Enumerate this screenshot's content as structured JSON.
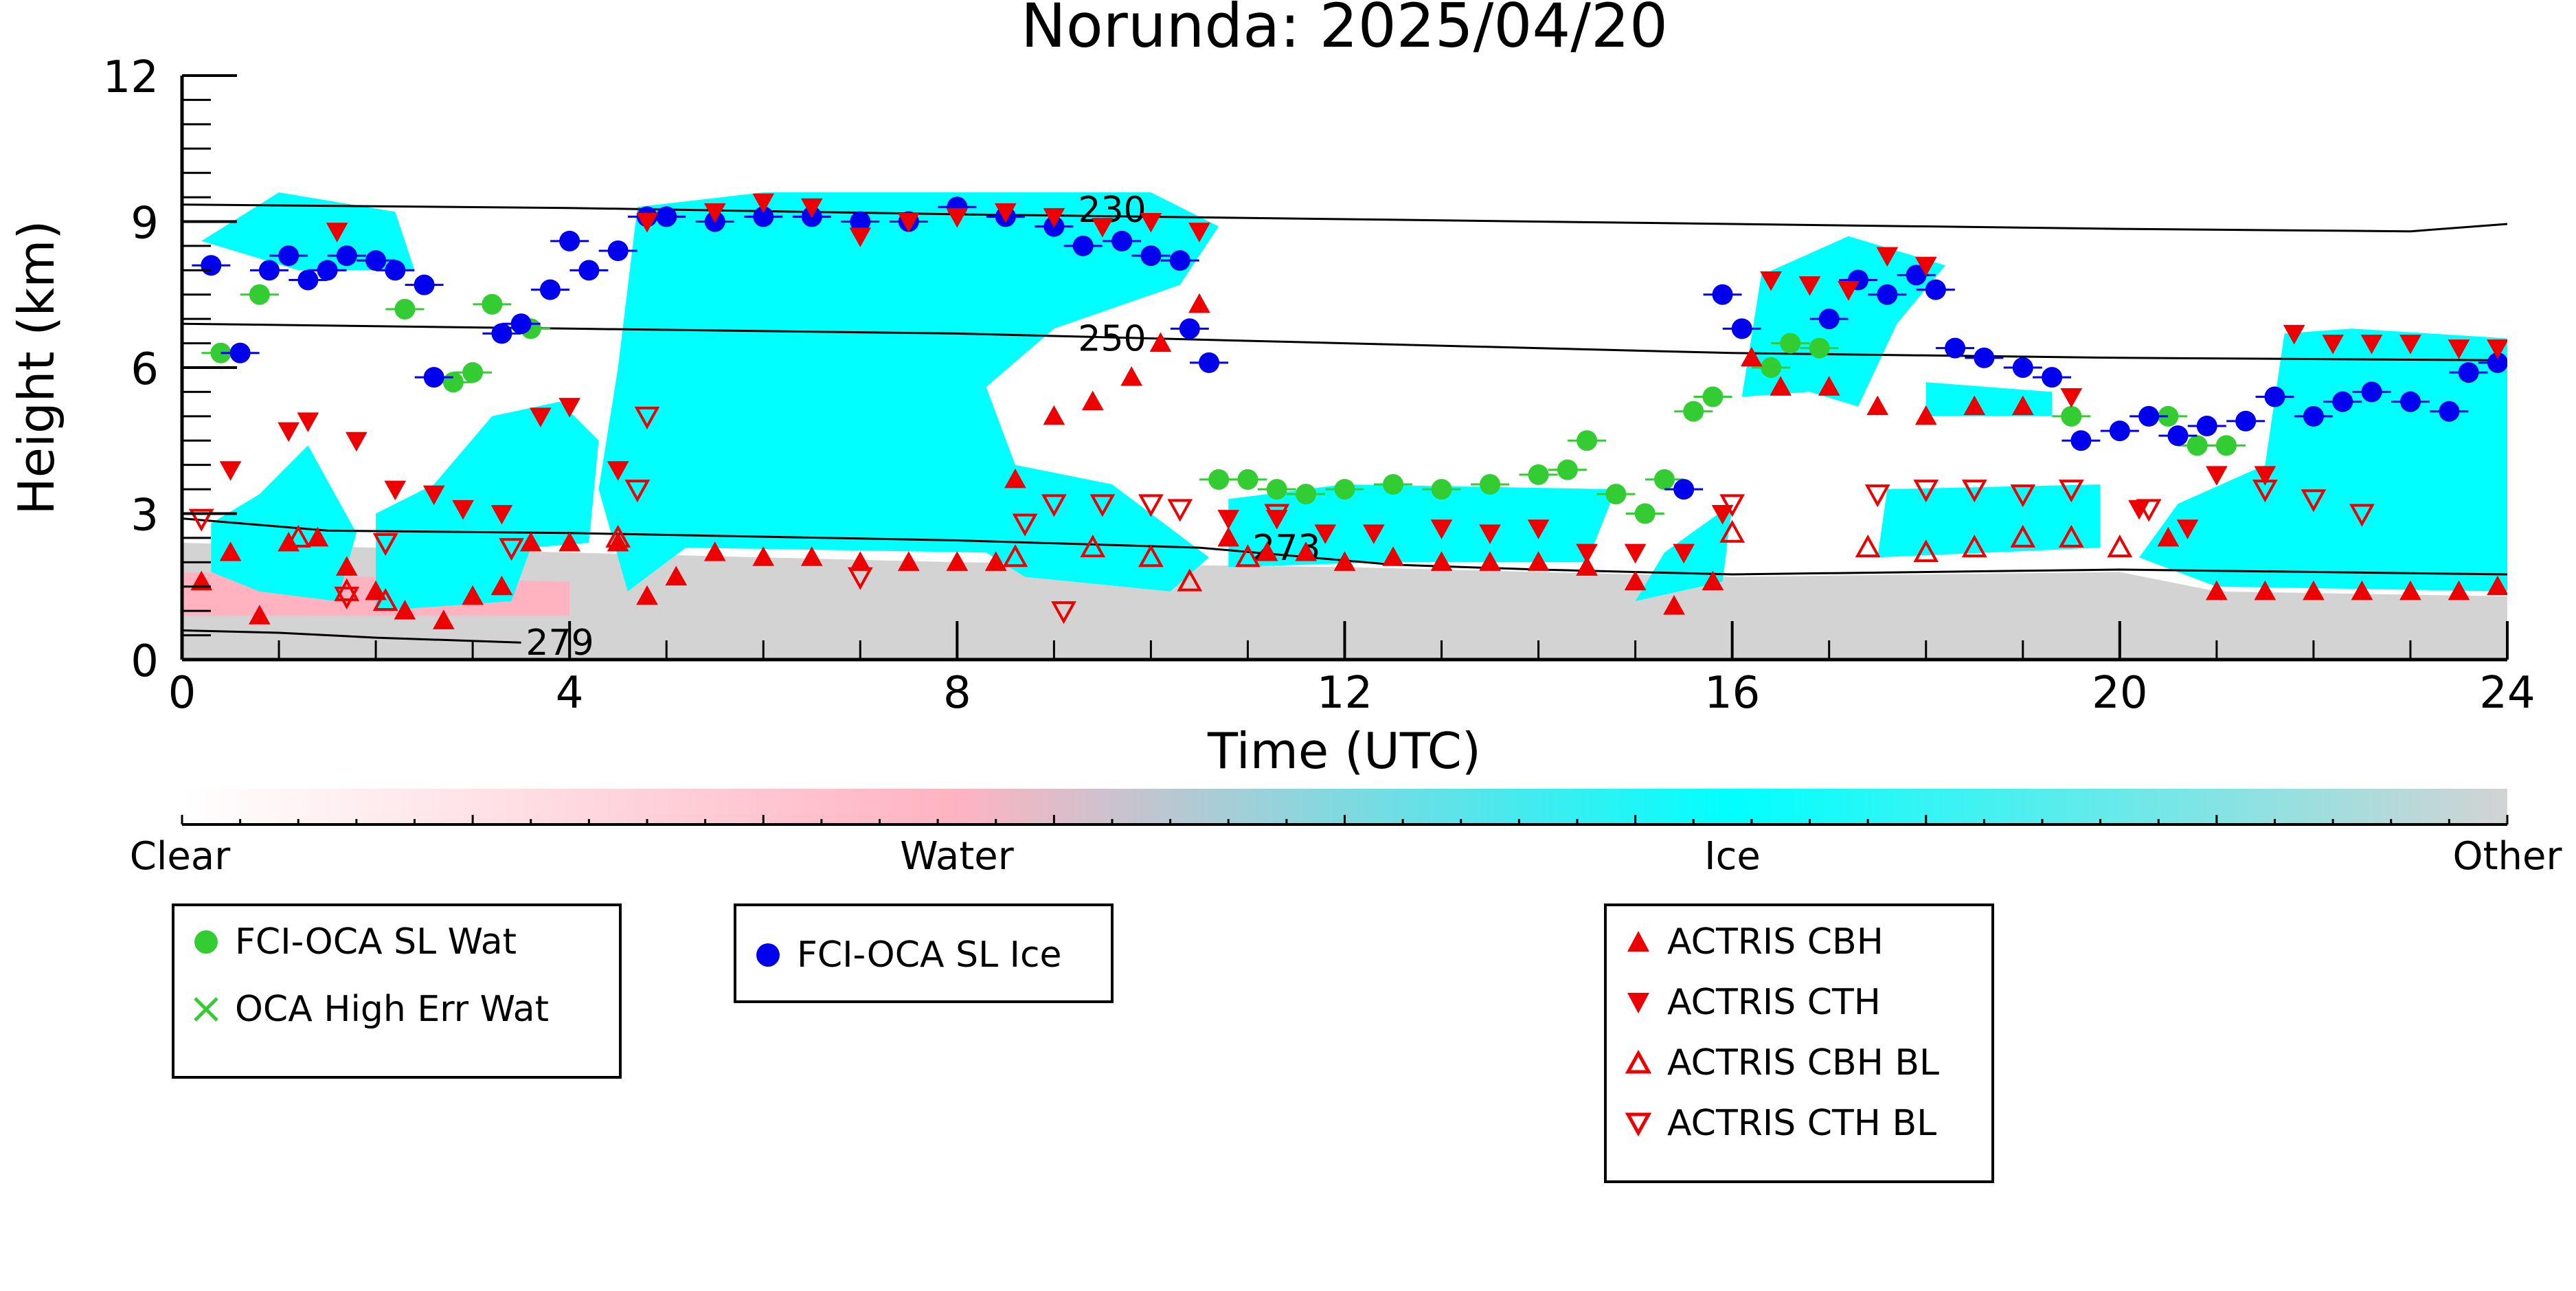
{
  "chart_data": {
    "type": "scatter",
    "title": "Norunda: 2025/04/20",
    "xlabel": "Time (UTC)",
    "ylabel": "Height (km)",
    "xlim": [
      0,
      24
    ],
    "ylim": [
      0,
      12
    ],
    "x_ticks": [
      "0",
      "4",
      "8",
      "12",
      "16",
      "20",
      "24"
    ],
    "y_ticks": [
      "0",
      "3",
      "6",
      "9",
      "12"
    ],
    "grid": false,
    "colorbar": {
      "labels": [
        "Clear",
        "Water",
        "Ice",
        "Other"
      ],
      "colors": [
        "#ffffff",
        "#ffb3c1",
        "#00ffff",
        "#d3d3d3"
      ]
    },
    "contours": [
      {
        "label": "230",
        "label_x": 9.6,
        "label_y": 9.25,
        "x": [
          0,
          4,
          8,
          12,
          16,
          20,
          23,
          24
        ],
        "y": [
          9.35,
          9.28,
          9.15,
          9.05,
          8.95,
          8.85,
          8.8,
          8.95
        ]
      },
      {
        "label": "250",
        "label_x": 9.6,
        "label_y": 6.6,
        "x": [
          0,
          4,
          8,
          12,
          16,
          20,
          24
        ],
        "y": [
          6.9,
          6.8,
          6.7,
          6.5,
          6.3,
          6.2,
          6.15
        ]
      },
      {
        "label": "273",
        "label_x": 11.4,
        "label_y": 2.3,
        "x": [
          0,
          1.5,
          4,
          8,
          10.5,
          12.5,
          14,
          16,
          20,
          24
        ],
        "y": [
          2.9,
          2.65,
          2.6,
          2.45,
          2.3,
          1.95,
          1.85,
          1.75,
          1.85,
          1.75
        ]
      },
      {
        "label": "279",
        "label_x": 3.9,
        "label_y": 0.35,
        "x": [
          0,
          1,
          2,
          3.5
        ],
        "y": [
          0.6,
          0.55,
          0.45,
          0.35
        ]
      }
    ],
    "series": [
      {
        "name": "FCI-OCA SL Wat",
        "marker": "circle",
        "color": "#33cc33",
        "points": [
          [
            0.4,
            6.3
          ],
          [
            0.8,
            7.5
          ],
          [
            2.3,
            7.2
          ],
          [
            2.8,
            5.7
          ],
          [
            3.0,
            5.9
          ],
          [
            3.2,
            7.3
          ],
          [
            3.6,
            6.8
          ],
          [
            10.7,
            3.7
          ],
          [
            11.0,
            3.7
          ],
          [
            11.3,
            3.5
          ],
          [
            11.6,
            3.4
          ],
          [
            12.0,
            3.5
          ],
          [
            12.5,
            3.6
          ],
          [
            13.0,
            3.5
          ],
          [
            13.5,
            3.6
          ],
          [
            14.0,
            3.8
          ],
          [
            14.3,
            3.9
          ],
          [
            14.5,
            4.5
          ],
          [
            14.8,
            3.4
          ],
          [
            15.1,
            3.0
          ],
          [
            15.3,
            3.7
          ],
          [
            15.6,
            5.1
          ],
          [
            15.8,
            5.4
          ],
          [
            16.4,
            6.0
          ],
          [
            16.6,
            6.5
          ],
          [
            16.9,
            6.4
          ],
          [
            19.5,
            5.0
          ],
          [
            20.5,
            5.0
          ],
          [
            20.8,
            4.4
          ],
          [
            21.1,
            4.4
          ]
        ]
      },
      {
        "name": "OCA High Err Wat",
        "marker": "x",
        "color": "#33cc33",
        "points": []
      },
      {
        "name": "FCI-OCA SL Ice",
        "marker": "circle",
        "color": "#0000ee",
        "points": [
          [
            0.3,
            8.1
          ],
          [
            0.6,
            6.3
          ],
          [
            0.9,
            8.0
          ],
          [
            1.1,
            8.3
          ],
          [
            1.3,
            7.8
          ],
          [
            1.5,
            8.0
          ],
          [
            1.7,
            8.3
          ],
          [
            2.0,
            8.2
          ],
          [
            2.2,
            8.0
          ],
          [
            2.5,
            7.7
          ],
          [
            2.6,
            5.8
          ],
          [
            3.3,
            6.7
          ],
          [
            3.5,
            6.9
          ],
          [
            3.8,
            7.6
          ],
          [
            4.0,
            8.6
          ],
          [
            4.2,
            8.0
          ],
          [
            4.5,
            8.4
          ],
          [
            4.8,
            9.1
          ],
          [
            5.0,
            9.1
          ],
          [
            5.5,
            9.0
          ],
          [
            6.0,
            9.1
          ],
          [
            6.5,
            9.1
          ],
          [
            7.0,
            9.0
          ],
          [
            7.5,
            9.0
          ],
          [
            8.0,
            9.3
          ],
          [
            8.5,
            9.1
          ],
          [
            9.0,
            8.9
          ],
          [
            9.3,
            8.5
          ],
          [
            9.7,
            8.6
          ],
          [
            10.0,
            8.3
          ],
          [
            10.3,
            8.2
          ],
          [
            10.4,
            6.8
          ],
          [
            10.6,
            6.1
          ],
          [
            15.5,
            3.5
          ],
          [
            15.9,
            7.5
          ],
          [
            16.1,
            6.8
          ],
          [
            17.0,
            7.0
          ],
          [
            17.3,
            7.8
          ],
          [
            17.6,
            7.5
          ],
          [
            17.9,
            7.9
          ],
          [
            18.1,
            7.6
          ],
          [
            18.3,
            6.4
          ],
          [
            18.6,
            6.2
          ],
          [
            19.0,
            6.0
          ],
          [
            19.3,
            5.8
          ],
          [
            19.6,
            4.5
          ],
          [
            20.0,
            4.7
          ],
          [
            20.3,
            5.0
          ],
          [
            20.6,
            4.6
          ],
          [
            20.9,
            4.8
          ],
          [
            21.3,
            4.9
          ],
          [
            21.6,
            5.4
          ],
          [
            22.0,
            5.0
          ],
          [
            22.3,
            5.3
          ],
          [
            22.6,
            5.5
          ],
          [
            23.0,
            5.3
          ],
          [
            23.4,
            5.1
          ],
          [
            23.6,
            5.9
          ],
          [
            23.9,
            6.1
          ]
        ]
      },
      {
        "name": "ACTRIS CBH",
        "marker": "triangle-up",
        "color": "#ee0000",
        "points": [
          [
            0.2,
            1.6
          ],
          [
            0.5,
            2.2
          ],
          [
            0.8,
            0.9
          ],
          [
            1.1,
            2.4
          ],
          [
            1.4,
            2.5
          ],
          [
            1.7,
            1.9
          ],
          [
            2.0,
            1.4
          ],
          [
            2.3,
            1.0
          ],
          [
            2.7,
            0.8
          ],
          [
            3.0,
            1.3
          ],
          [
            3.3,
            1.5
          ],
          [
            3.6,
            2.4
          ],
          [
            4.0,
            2.4
          ],
          [
            4.5,
            2.4
          ],
          [
            4.8,
            1.3
          ],
          [
            5.1,
            1.7
          ],
          [
            5.5,
            2.2
          ],
          [
            6.0,
            2.1
          ],
          [
            6.5,
            2.1
          ],
          [
            7.0,
            2.0
          ],
          [
            7.5,
            2.0
          ],
          [
            8.0,
            2.0
          ],
          [
            8.4,
            2.0
          ],
          [
            8.6,
            3.7
          ],
          [
            9.0,
            5.0
          ],
          [
            9.4,
            5.3
          ],
          [
            9.8,
            5.8
          ],
          [
            10.1,
            6.5
          ],
          [
            10.5,
            7.3
          ],
          [
            10.8,
            2.5
          ],
          [
            11.2,
            2.2
          ],
          [
            11.6,
            2.2
          ],
          [
            12.0,
            2.0
          ],
          [
            12.5,
            2.1
          ],
          [
            13.0,
            2.0
          ],
          [
            13.5,
            2.0
          ],
          [
            14.0,
            2.0
          ],
          [
            14.5,
            1.9
          ],
          [
            15.0,
            1.6
          ],
          [
            15.4,
            1.1
          ],
          [
            15.8,
            1.6
          ],
          [
            16.2,
            6.2
          ],
          [
            16.5,
            5.6
          ],
          [
            17.0,
            5.6
          ],
          [
            17.5,
            5.2
          ],
          [
            18.0,
            5.0
          ],
          [
            18.5,
            5.2
          ],
          [
            19.0,
            5.2
          ],
          [
            20.5,
            2.5
          ],
          [
            21.0,
            1.4
          ],
          [
            21.5,
            1.4
          ],
          [
            22.0,
            1.4
          ],
          [
            22.5,
            1.4
          ],
          [
            23.0,
            1.4
          ],
          [
            23.5,
            1.4
          ],
          [
            23.9,
            1.5
          ]
        ]
      },
      {
        "name": "ACTRIS CTH",
        "marker": "triangle-down",
        "color": "#ee0000",
        "points": [
          [
            0.5,
            3.9
          ],
          [
            1.1,
            4.7
          ],
          [
            1.3,
            4.9
          ],
          [
            1.6,
            8.8
          ],
          [
            1.8,
            4.5
          ],
          [
            2.2,
            3.5
          ],
          [
            2.6,
            3.4
          ],
          [
            2.9,
            3.1
          ],
          [
            3.3,
            3.0
          ],
          [
            3.7,
            5.0
          ],
          [
            4.0,
            5.2
          ],
          [
            4.5,
            3.9
          ],
          [
            4.8,
            9.0
          ],
          [
            5.5,
            9.2
          ],
          [
            6.0,
            9.4
          ],
          [
            6.5,
            9.3
          ],
          [
            7.0,
            8.7
          ],
          [
            7.5,
            9.0
          ],
          [
            8.0,
            9.1
          ],
          [
            8.5,
            9.2
          ],
          [
            9.0,
            9.1
          ],
          [
            9.5,
            8.9
          ],
          [
            10.0,
            9.0
          ],
          [
            10.5,
            8.8
          ],
          [
            10.8,
            2.9
          ],
          [
            11.3,
            2.9
          ],
          [
            11.8,
            2.6
          ],
          [
            12.3,
            2.6
          ],
          [
            13.0,
            2.7
          ],
          [
            13.5,
            2.6
          ],
          [
            14.0,
            2.7
          ],
          [
            14.5,
            2.2
          ],
          [
            15.0,
            2.2
          ],
          [
            15.5,
            2.2
          ],
          [
            15.9,
            3.0
          ],
          [
            16.4,
            7.8
          ],
          [
            16.8,
            7.7
          ],
          [
            17.2,
            7.6
          ],
          [
            17.6,
            8.3
          ],
          [
            18.0,
            8.1
          ],
          [
            19.5,
            5.4
          ],
          [
            20.2,
            3.1
          ],
          [
            20.7,
            2.7
          ],
          [
            21.0,
            3.8
          ],
          [
            21.5,
            3.8
          ],
          [
            21.8,
            6.7
          ],
          [
            22.2,
            6.5
          ],
          [
            22.6,
            6.5
          ],
          [
            23.0,
            6.5
          ],
          [
            23.5,
            6.4
          ],
          [
            23.9,
            6.4
          ]
        ]
      },
      {
        "name": "ACTRIS CBH BL",
        "marker": "triangle-up-open",
        "color": "#ee0000",
        "points": [
          [
            1.2,
            2.5
          ],
          [
            1.7,
            1.4
          ],
          [
            2.1,
            1.2
          ],
          [
            4.5,
            2.5
          ],
          [
            8.6,
            2.1
          ],
          [
            9.4,
            2.3
          ],
          [
            10.0,
            2.1
          ],
          [
            10.4,
            1.6
          ],
          [
            11.0,
            2.1
          ],
          [
            16.0,
            2.6
          ],
          [
            17.4,
            2.3
          ],
          [
            18.0,
            2.2
          ],
          [
            18.5,
            2.3
          ],
          [
            19.0,
            2.5
          ],
          [
            19.5,
            2.5
          ],
          [
            20.0,
            2.3
          ]
        ]
      },
      {
        "name": "ACTRIS CTH BL",
        "marker": "triangle-down-open",
        "color": "#ee0000",
        "points": [
          [
            0.2,
            2.9
          ],
          [
            1.7,
            1.3
          ],
          [
            2.1,
            2.4
          ],
          [
            3.4,
            2.3
          ],
          [
            4.7,
            3.5
          ],
          [
            4.8,
            5.0
          ],
          [
            7.0,
            1.7
          ],
          [
            8.7,
            2.8
          ],
          [
            9.0,
            3.2
          ],
          [
            9.5,
            3.2
          ],
          [
            10.0,
            3.2
          ],
          [
            10.3,
            3.1
          ],
          [
            9.1,
            1.0
          ],
          [
            11.3,
            3.0
          ],
          [
            16.0,
            3.2
          ],
          [
            17.5,
            3.4
          ],
          [
            18.0,
            3.5
          ],
          [
            18.5,
            3.5
          ],
          [
            19.0,
            3.4
          ],
          [
            19.5,
            3.5
          ],
          [
            20.3,
            3.1
          ],
          [
            21.5,
            3.5
          ],
          [
            22.0,
            3.3
          ],
          [
            22.5,
            3.0
          ]
        ]
      }
    ]
  }
}
